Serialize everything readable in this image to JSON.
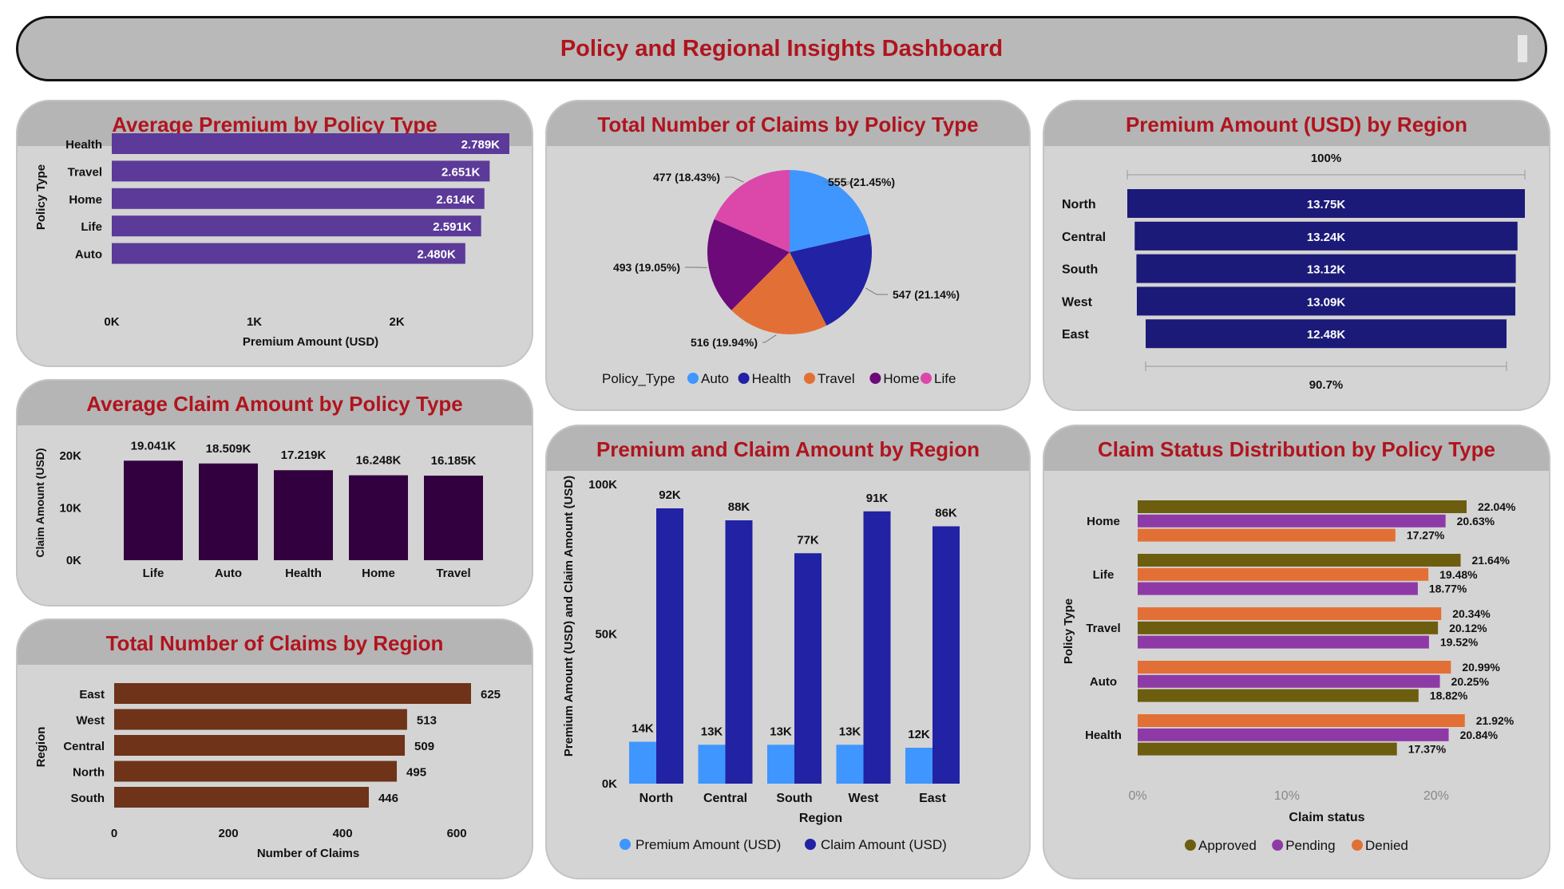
{
  "dashboard": {
    "title": "Policy and Regional Insights Dashboard"
  },
  "colors": {
    "title_red": "#b0141e",
    "panel_bg": "#d4d4d4",
    "panel_header": "#b5b5b5",
    "avg_premium_bar": "#5b3a99",
    "avg_claim_bar": "#33003f",
    "claims_region_bar": "#6e3319",
    "premium_region_bar": "#1b1a78",
    "premium_light_blue": "#3f96ff",
    "claim_dark_blue": "#2222a4",
    "auto": "#3f96ff",
    "health": "#2222a4",
    "travel": "#e27036",
    "home": "#6c0a7a",
    "life": "#db48aa",
    "approved": "#6d5d0f",
    "pending": "#8e3aa6",
    "denied": "#e27036"
  },
  "chart_data": [
    {
      "id": "avg_premium",
      "type": "bar",
      "orientation": "horizontal",
      "title": "Average Premium by Policy Type",
      "xlabel": "Premium Amount (USD)",
      "ylabel": "Policy Type",
      "categories": [
        "Health",
        "Travel",
        "Home",
        "Life",
        "Auto"
      ],
      "values": [
        2789,
        2651,
        2614,
        2591,
        2480
      ],
      "value_labels": [
        "2.789K",
        "2.651K",
        "2.614K",
        "2.591K",
        "2.480K"
      ],
      "xticks": [
        "0K",
        "1K",
        "2K"
      ],
      "xlim": [
        0,
        2789
      ]
    },
    {
      "id": "claims_by_policy",
      "type": "pie",
      "title": "Total Number of Claims by Policy Type",
      "legend_title": "Policy_Type",
      "legend_position": "bottom",
      "legend": [
        "Auto",
        "Health",
        "Travel",
        "Home",
        "Life"
      ],
      "slices": [
        {
          "label": "Auto",
          "value": 555,
          "text": "555 (21.45%)"
        },
        {
          "label": "Health",
          "value": 547,
          "text": "547 (21.14%)"
        },
        {
          "label": "Travel",
          "value": 516,
          "text": "516 (19.94%)"
        },
        {
          "label": "Home",
          "value": 493,
          "text": "493 (19.05%)"
        },
        {
          "label": "Life",
          "value": 477,
          "text": "477 (18.43%)"
        }
      ]
    },
    {
      "id": "premium_by_region",
      "type": "bar",
      "orientation": "funnel",
      "title": "Premium Amount (USD) by Region",
      "top_label": "100%",
      "bottom_label": "90.7%",
      "categories": [
        "North",
        "Central",
        "South",
        "West",
        "East"
      ],
      "values": [
        13750,
        13240,
        13120,
        13090,
        12480
      ],
      "value_labels": [
        "13.75K",
        "13.24K",
        "13.12K",
        "13.09K",
        "12.48K"
      ]
    },
    {
      "id": "avg_claim",
      "type": "bar",
      "title": "Average Claim Amount by Policy Type",
      "ylabel": "Claim Amount (USD)",
      "categories": [
        "Life",
        "Auto",
        "Health",
        "Home",
        "Travel"
      ],
      "values": [
        19041,
        18509,
        17219,
        16248,
        16185
      ],
      "value_labels": [
        "19.041K",
        "18.509K",
        "17.219K",
        "16.248K",
        "16.185K"
      ],
      "yticks": [
        "0K",
        "10K",
        "20K"
      ],
      "ylim": [
        0,
        20000
      ]
    },
    {
      "id": "premium_claim_region",
      "type": "bar",
      "title": "Premium and Claim Amount by Region",
      "xlabel": "Region",
      "ylabel": "Premium Amount (USD) and Claim Amount (USD)",
      "categories": [
        "North",
        "Central",
        "South",
        "West",
        "East"
      ],
      "yticks": [
        "0K",
        "50K",
        "100K"
      ],
      "ylim": [
        0,
        100000
      ],
      "legend_position": "bottom",
      "series": [
        {
          "name": "Premium Amount (USD)",
          "values": [
            14000,
            13000,
            13000,
            13000,
            12000
          ],
          "labels": [
            "14K",
            "13K",
            "13K",
            "13K",
            "12K"
          ]
        },
        {
          "name": "Claim Amount (USD)",
          "values": [
            92000,
            88000,
            77000,
            91000,
            86000
          ],
          "labels": [
            "92K",
            "88K",
            "77K",
            "91K",
            "86K"
          ]
        }
      ]
    },
    {
      "id": "claims_by_region",
      "type": "bar",
      "orientation": "horizontal",
      "title": "Total Number of Claims by Region",
      "xlabel": "Number of Claims",
      "ylabel": "Region",
      "categories": [
        "East",
        "West",
        "Central",
        "North",
        "South"
      ],
      "values": [
        625,
        513,
        509,
        495,
        446
      ],
      "value_labels": [
        "625",
        "513",
        "509",
        "495",
        "446"
      ],
      "xticks": [
        "0",
        "200",
        "400",
        "600"
      ],
      "xlim": [
        0,
        625
      ]
    },
    {
      "id": "claim_status",
      "type": "bar",
      "orientation": "horizontal",
      "title": "Claim Status Distribution by Policy Type",
      "xlabel": "Claim status",
      "ylabel": "Policy Type",
      "xticks": [
        "0%",
        "10%",
        "20%"
      ],
      "xlim": [
        0,
        22.04
      ],
      "legend": [
        "Approved",
        "Pending",
        "Denied"
      ],
      "legend_position": "bottom",
      "groups": [
        {
          "category": "Home",
          "bars": [
            {
              "status": "Approved",
              "value": 22.04,
              "label": "22.04%"
            },
            {
              "status": "Pending",
              "value": 20.63,
              "label": "20.63%"
            },
            {
              "status": "Denied",
              "value": 17.27,
              "label": "17.27%"
            }
          ]
        },
        {
          "category": "Life",
          "bars": [
            {
              "status": "Approved",
              "value": 21.64,
              "label": "21.64%"
            },
            {
              "status": "Denied",
              "value": 19.48,
              "label": "19.48%"
            },
            {
              "status": "Pending",
              "value": 18.77,
              "label": "18.77%"
            }
          ]
        },
        {
          "category": "Travel",
          "bars": [
            {
              "status": "Denied",
              "value": 20.34,
              "label": "20.34%"
            },
            {
              "status": "Approved",
              "value": 20.12,
              "label": "20.12%"
            },
            {
              "status": "Pending",
              "value": 19.52,
              "label": "19.52%"
            }
          ]
        },
        {
          "category": "Auto",
          "bars": [
            {
              "status": "Denied",
              "value": 20.99,
              "label": "20.99%"
            },
            {
              "status": "Pending",
              "value": 20.25,
              "label": "20.25%"
            },
            {
              "status": "Approved",
              "value": 18.82,
              "label": "18.82%"
            }
          ]
        },
        {
          "category": "Health",
          "bars": [
            {
              "status": "Denied",
              "value": 21.92,
              "label": "21.92%"
            },
            {
              "status": "Pending",
              "value": 20.84,
              "label": "20.84%"
            },
            {
              "status": "Approved",
              "value": 17.37,
              "label": "17.37%"
            }
          ]
        }
      ]
    }
  ]
}
